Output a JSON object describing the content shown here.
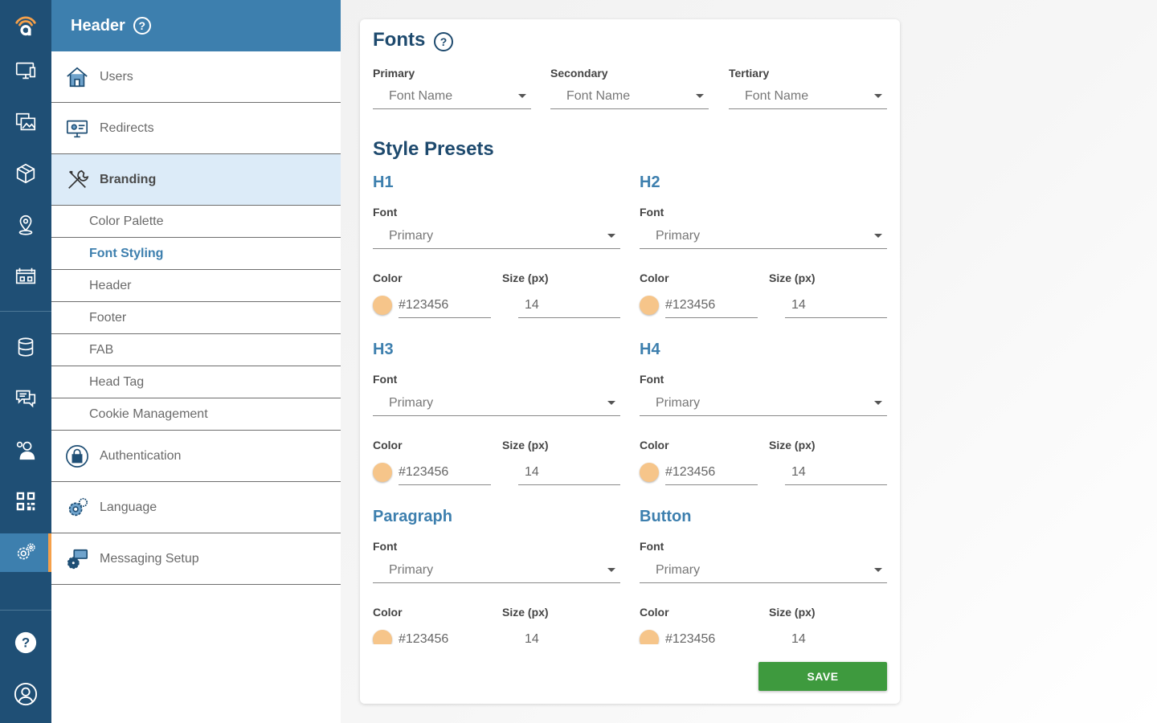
{
  "rail": {
    "items": [
      {
        "name": "logo-icon"
      },
      {
        "name": "monitor-icon"
      },
      {
        "name": "media-icon"
      },
      {
        "name": "package-icon"
      },
      {
        "name": "location-pin-icon"
      },
      {
        "name": "calendar-board-icon"
      },
      {
        "name": "database-icon"
      },
      {
        "name": "chat-icon"
      },
      {
        "name": "user-settings-icon"
      },
      {
        "name": "qr-code-icon"
      },
      {
        "name": "settings-gears-icon"
      },
      {
        "name": "help-icon"
      },
      {
        "name": "account-icon"
      }
    ],
    "accent_color": "#f5a04a"
  },
  "sidebar": {
    "title": "Header",
    "help_glyph": "?",
    "items": [
      {
        "label": "Users",
        "icon": "home-icon"
      },
      {
        "label": "Redirects",
        "icon": "monitor-settings-icon"
      },
      {
        "label": "Branding",
        "icon": "tools-icon",
        "active": true
      },
      {
        "label": "Authentication",
        "icon": "lock-icon"
      },
      {
        "label": "Language",
        "icon": "gear-icon"
      },
      {
        "label": "Messaging Setup",
        "icon": "message-gear-icon"
      }
    ],
    "sub_items": [
      {
        "label": "Color Palette"
      },
      {
        "label": "Font Styling",
        "active": true
      },
      {
        "label": "Header"
      },
      {
        "label": "Footer"
      },
      {
        "label": "FAB"
      },
      {
        "label": "Head Tag"
      },
      {
        "label": "Cookie Management"
      }
    ]
  },
  "fonts": {
    "title": "Fonts",
    "help_glyph": "?",
    "primary_label": "Primary",
    "primary_value": "Font Name",
    "secondary_label": "Secondary",
    "secondary_value": "Font Name",
    "tertiary_label": "Tertiary",
    "tertiary_value": "Font Name"
  },
  "presets": {
    "title": "Style Presets",
    "font_label": "Font",
    "color_label": "Color",
    "size_label": "Size (px)",
    "items": [
      {
        "name": "H1",
        "font": "Primary",
        "color": "#123456",
        "size": "14"
      },
      {
        "name": "H2",
        "font": "Primary",
        "color": "#123456",
        "size": "14"
      },
      {
        "name": "H3",
        "font": "Primary",
        "color": "#123456",
        "size": "14"
      },
      {
        "name": "H4",
        "font": "Primary",
        "color": "#123456",
        "size": "14"
      },
      {
        "name": "Paragraph",
        "font": "Primary",
        "color": "#123456",
        "size": "14"
      },
      {
        "name": "Button",
        "font": "Primary",
        "color": "#123456",
        "size": "14"
      }
    ],
    "swatch_color": "#f6c58a"
  },
  "save_label": "SAVE"
}
